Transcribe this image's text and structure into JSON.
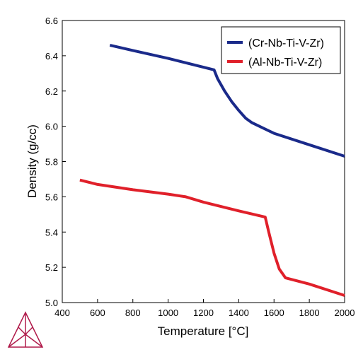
{
  "chart_data": {
    "type": "line",
    "xlabel": "Temperature [°C]",
    "ylabel": "Density (g/cc)",
    "xlim": [
      400,
      2000
    ],
    "ylim": [
      5.0,
      6.6
    ],
    "xticks": [
      400,
      600,
      800,
      1000,
      1200,
      1400,
      1600,
      1800,
      2000
    ],
    "yticks": [
      5.0,
      5.2,
      5.4,
      5.6,
      5.8,
      6.0,
      6.2,
      6.4,
      6.6
    ],
    "grid": false,
    "legend_position": "top-right",
    "series": [
      {
        "name": "(Cr-Nb-Ti-V-Zr)",
        "color": "#1a2a8a",
        "x": [
          670,
          800,
          1000,
          1200,
          1260,
          1280,
          1320,
          1360,
          1400,
          1440,
          1475,
          1600,
          1800,
          2000
        ],
        "y": [
          6.46,
          6.43,
          6.385,
          6.335,
          6.32,
          6.27,
          6.2,
          6.14,
          6.09,
          6.045,
          6.02,
          5.96,
          5.895,
          5.83
        ]
      },
      {
        "name": "(Al-Nb-Ti-V-Zr)",
        "color": "#e0202a",
        "x": [
          500,
          600,
          800,
          1000,
          1100,
          1200,
          1400,
          1550,
          1570,
          1600,
          1630,
          1665,
          1800,
          2000
        ],
        "y": [
          5.695,
          5.67,
          5.64,
          5.615,
          5.6,
          5.57,
          5.52,
          5.485,
          5.4,
          5.28,
          5.19,
          5.14,
          5.105,
          5.04
        ]
      }
    ]
  },
  "logo": {
    "icon": "ternary-triangle-logo-icon",
    "color": "#b01a4a"
  }
}
